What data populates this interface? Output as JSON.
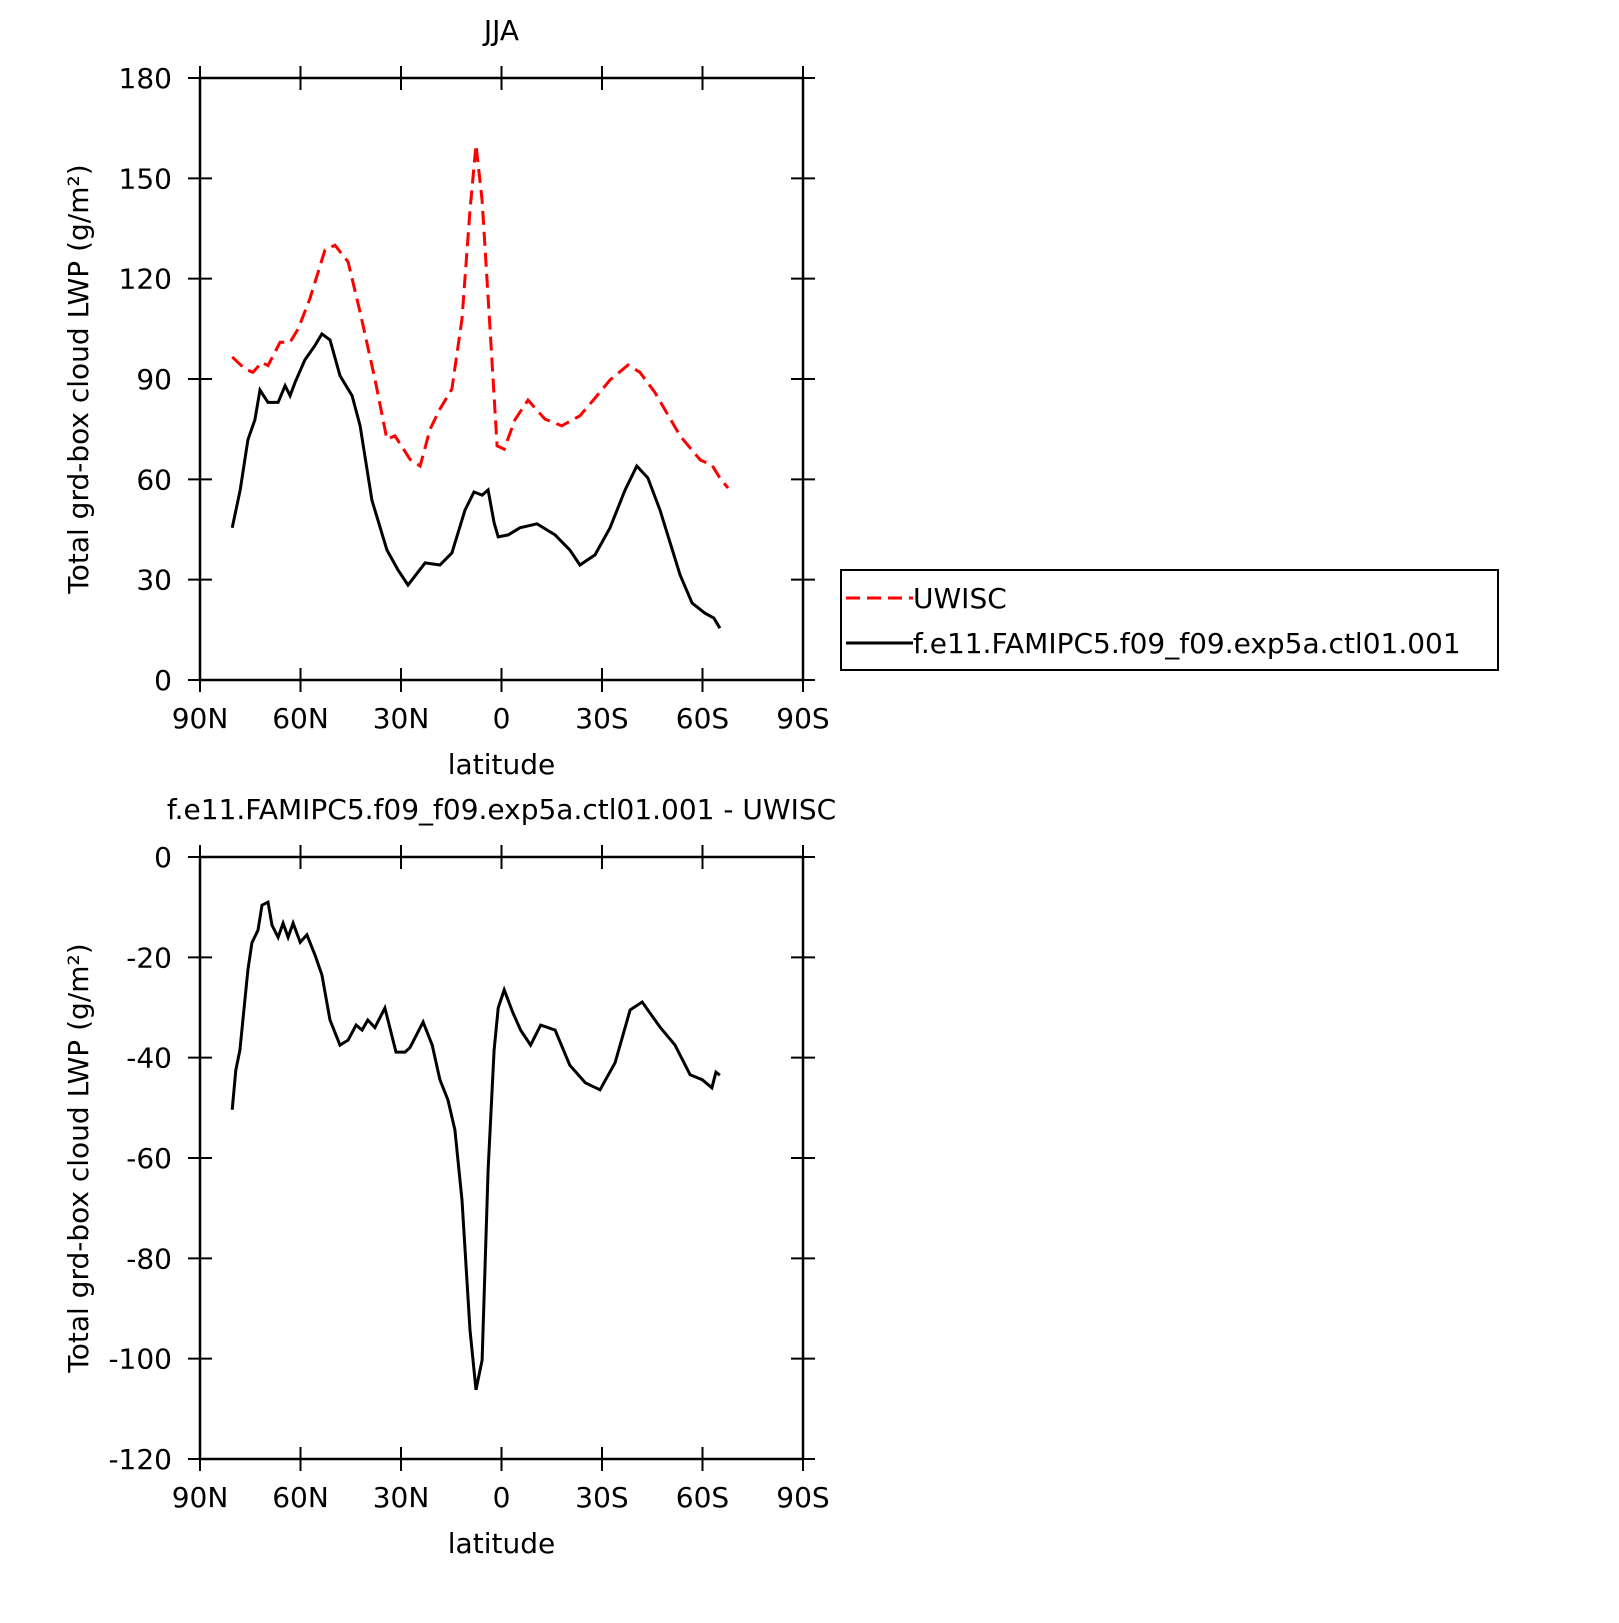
{
  "chart_data": [
    {
      "type": "line",
      "title": "JJA",
      "x_label": "latitude",
      "y_label": "Total grd-box cloud LWP (g/m²)",
      "xlim": [
        90,
        -90
      ],
      "xticks": [
        {
          "value": 90,
          "label": "90N"
        },
        {
          "value": 60,
          "label": "60N"
        },
        {
          "value": 30,
          "label": "30N"
        },
        0,
        {
          "value": -30,
          "label": "30S"
        },
        {
          "value": -60,
          "label": "60S"
        },
        {
          "value": -90,
          "label": "90S"
        }
      ],
      "ylim": [
        0,
        180
      ],
      "yticks": [
        0,
        30,
        60,
        90,
        120,
        150,
        180
      ],
      "legend": "right",
      "series": [
        {
          "name": "UWISC",
          "color": "#ff0000",
          "line_style": "dashed",
          "x": [
            80.4,
            76.6,
            74.2,
            71.5,
            69.7,
            66.1,
            63.1,
            60.7,
            57.2,
            52.7,
            49.7,
            45.8,
            42.2,
            37.8,
            34.2,
            31.8,
            27.3,
            24.3,
            21.3,
            18.4,
            14.8,
            11.8,
            9.4,
            7.6,
            5.8,
            3.4,
            1.3,
            -0.8,
            -4.0,
            -7.9,
            -13,
            -18,
            -23.4,
            -27.9,
            -32.4,
            -37.8,
            -41.3,
            -45.8,
            -53.3,
            -59.3,
            -62.8,
            -65.2,
            -67.6
          ],
          "values": [
            96.6,
            93,
            92,
            95,
            94,
            101,
            101,
            105,
            114,
            128.6,
            130,
            125,
            110,
            90,
            72,
            73,
            66,
            64,
            75,
            81,
            87,
            108,
            140.5,
            160,
            143.5,
            104.7,
            70,
            69,
            77.8,
            83.7,
            78,
            76,
            79,
            84.3,
            89.7,
            94.2,
            92,
            86,
            73,
            65.8,
            64.3,
            60.4,
            57.4
          ]
        },
        {
          "name": "f.e11.FAMIPC5.f09_f09.exp5a.ctl01.001",
          "color": "#000000",
          "line_style": "solid",
          "x": [
            80.4,
            78,
            75.7,
            73.6,
            72.1,
            69.7,
            66.7,
            64.6,
            63.1,
            61.6,
            58.7,
            55.7,
            53.6,
            51.2,
            48.2,
            44.6,
            42.2,
            38.7,
            34.2,
            30.9,
            27.9,
            22.8,
            18.4,
            14.8,
            10.9,
            8.2,
            5.8,
            4.0,
            2.2,
            1.0,
            -2.0,
            -5.5,
            -10.6,
            -16,
            -20.4,
            -23.4,
            -27.9,
            -32.4,
            -36.9,
            -40.4,
            -43.7,
            -47.3,
            -53.3,
            -56.9,
            -60.7,
            -63.4,
            -65.2
          ],
          "values": [
            45.5,
            56.8,
            71.8,
            77.8,
            86.7,
            83,
            83,
            88,
            85,
            89,
            95.7,
            100,
            103.5,
            101.7,
            91,
            85,
            76,
            53.8,
            38.9,
            32.9,
            28.4,
            35,
            34.4,
            38,
            50.8,
            56.2,
            55.3,
            56.8,
            47,
            42.8,
            43.4,
            45.5,
            46.7,
            43.4,
            38.9,
            34.4,
            37.4,
            45.5,
            56.8,
            64,
            60.4,
            50.8,
            31.4,
            23,
            20,
            18.5,
            15.5
          ]
        }
      ]
    },
    {
      "type": "line",
      "title": "f.e11.FAMIPC5.f09_f09.exp5a.ctl01.001 - UWISC",
      "x_label": "latitude",
      "y_label": "Total grd-box cloud LWP (g/m²)",
      "xlim": [
        90,
        -90
      ],
      "xticks": [
        {
          "value": 90,
          "label": "90N"
        },
        {
          "value": 60,
          "label": "60N"
        },
        {
          "value": 30,
          "label": "30N"
        },
        0,
        {
          "value": -30,
          "label": "30S"
        },
        {
          "value": -60,
          "label": "60S"
        },
        {
          "value": -90,
          "label": "90S"
        }
      ],
      "ylim": [
        -120,
        0
      ],
      "yticks": [
        -120,
        -100,
        -80,
        -60,
        -40,
        -20,
        0
      ],
      "series": [
        {
          "color": "#000000",
          "line_style": "solid",
          "x": [
            80.4,
            79.3,
            78.1,
            75.7,
            74.5,
            72.7,
            71.5,
            69.7,
            68.5,
            66.7,
            65.2,
            63.7,
            62.2,
            60.1,
            58.1,
            55.7,
            53.6,
            51.2,
            48.2,
            45.8,
            43.4,
            41.6,
            39.9,
            37.8,
            34.8,
            31.5,
            28.8,
            27.3,
            23.4,
            20.7,
            18.4,
            16.0,
            13.9,
            11.8,
            9.4,
            7.6,
            5.8,
            4.0,
            2.2,
            1.0,
            -0.8,
            -3.3,
            -5.7,
            -8.7,
            -11.7,
            -16,
            -20.4,
            -25,
            -29.4,
            -33.9,
            -38.4,
            -42,
            -47.3,
            -51.8,
            -56.3,
            -59.9,
            -62.8,
            -64.0,
            -65.2
          ],
          "values": [
            -50.4,
            -42.5,
            -38.5,
            -22.5,
            -17.1,
            -14.6,
            -9.6,
            -9,
            -13.6,
            -16,
            -13.2,
            -16,
            -13.2,
            -17,
            -15.5,
            -19.5,
            -23.5,
            -32.5,
            -37.5,
            -36.5,
            -33.5,
            -34.5,
            -32.5,
            -34,
            -30.1,
            -38.9,
            -38.9,
            -38,
            -32.9,
            -37.5,
            -44.4,
            -48.4,
            -54.4,
            -68.4,
            -94.3,
            -106.2,
            -100.3,
            -62.4,
            -38.5,
            -30.1,
            -26.5,
            -30.9,
            -34.5,
            -37.5,
            -33.5,
            -34.5,
            -41.5,
            -45,
            -46.4,
            -41,
            -30.5,
            -28.9,
            -33.9,
            -37.5,
            -43.4,
            -44.4,
            -46,
            -42.9,
            -43.5
          ]
        }
      ]
    }
  ]
}
